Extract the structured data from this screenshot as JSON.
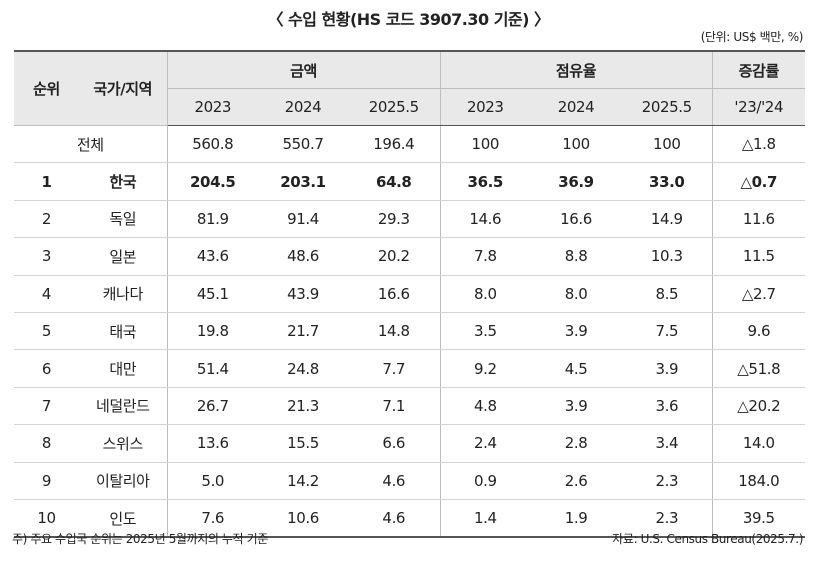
{
  "title": "〈 수입 현황(HS 코드 3907.30 기준) 〉",
  "unit": "(단위: US$ 백만, %)",
  "header": {
    "rank": "순위",
    "country": "국가/지역",
    "amount_group": "금액",
    "share_group": "점유율",
    "growth_group": "증감률",
    "amount_years": [
      "2023",
      "2024",
      "2025.5"
    ],
    "share_years": [
      "2023",
      "2024",
      "2025.5"
    ],
    "growth_period": "'23/'24"
  },
  "rows": [
    {
      "rank": "",
      "country": "전체",
      "amount": [
        "560.8",
        "550.7",
        "196.4"
      ],
      "share": [
        "100",
        "100",
        "100"
      ],
      "growth": "△1.8"
    },
    {
      "rank": "1",
      "country": "한국",
      "amount": [
        "204.5",
        "203.1",
        "64.8"
      ],
      "share": [
        "36.5",
        "36.9",
        "33.0"
      ],
      "growth": "△0.7"
    },
    {
      "rank": "2",
      "country": "독일",
      "amount": [
        "81.9",
        "91.4",
        "29.3"
      ],
      "share": [
        "14.6",
        "16.6",
        "14.9"
      ],
      "growth": "11.6"
    },
    {
      "rank": "3",
      "country": "일본",
      "amount": [
        "43.6",
        "48.6",
        "20.2"
      ],
      "share": [
        "7.8",
        "8.8",
        "10.3"
      ],
      "growth": "11.5"
    },
    {
      "rank": "4",
      "country": "캐나다",
      "amount": [
        "45.1",
        "43.9",
        "16.6"
      ],
      "share": [
        "8.0",
        "8.0",
        "8.5"
      ],
      "growth": "△2.7"
    },
    {
      "rank": "5",
      "country": "태국",
      "amount": [
        "19.8",
        "21.7",
        "14.8"
      ],
      "share": [
        "3.5",
        "3.9",
        "7.5"
      ],
      "growth": "9.6"
    },
    {
      "rank": "6",
      "country": "대만",
      "amount": [
        "51.4",
        "24.8",
        "7.7"
      ],
      "share": [
        "9.2",
        "4.5",
        "3.9"
      ],
      "growth": "△51.8"
    },
    {
      "rank": "7",
      "country": "네덜란드",
      "amount": [
        "26.7",
        "21.3",
        "7.1"
      ],
      "share": [
        "4.8",
        "3.9",
        "3.6"
      ],
      "growth": "△20.2"
    },
    {
      "rank": "8",
      "country": "스위스",
      "amount": [
        "13.6",
        "15.5",
        "6.6"
      ],
      "share": [
        "2.4",
        "2.8",
        "3.4"
      ],
      "growth": "14.0"
    },
    {
      "rank": "9",
      "country": "이탈리아",
      "amount": [
        "5.0",
        "14.2",
        "4.6"
      ],
      "share": [
        "0.9",
        "2.6",
        "2.3"
      ],
      "growth": "184.0"
    },
    {
      "rank": "10",
      "country": "인도",
      "amount": [
        "7.6",
        "10.6",
        "4.6"
      ],
      "share": [
        "1.4",
        "1.9",
        "2.3"
      ],
      "growth": "39.5"
    }
  ],
  "footnote": "주) 주요 수입국 순위는 2025년 5월까지의 누적 기준",
  "source": "자료: U.S. Census Bureau(2025.7.)"
}
